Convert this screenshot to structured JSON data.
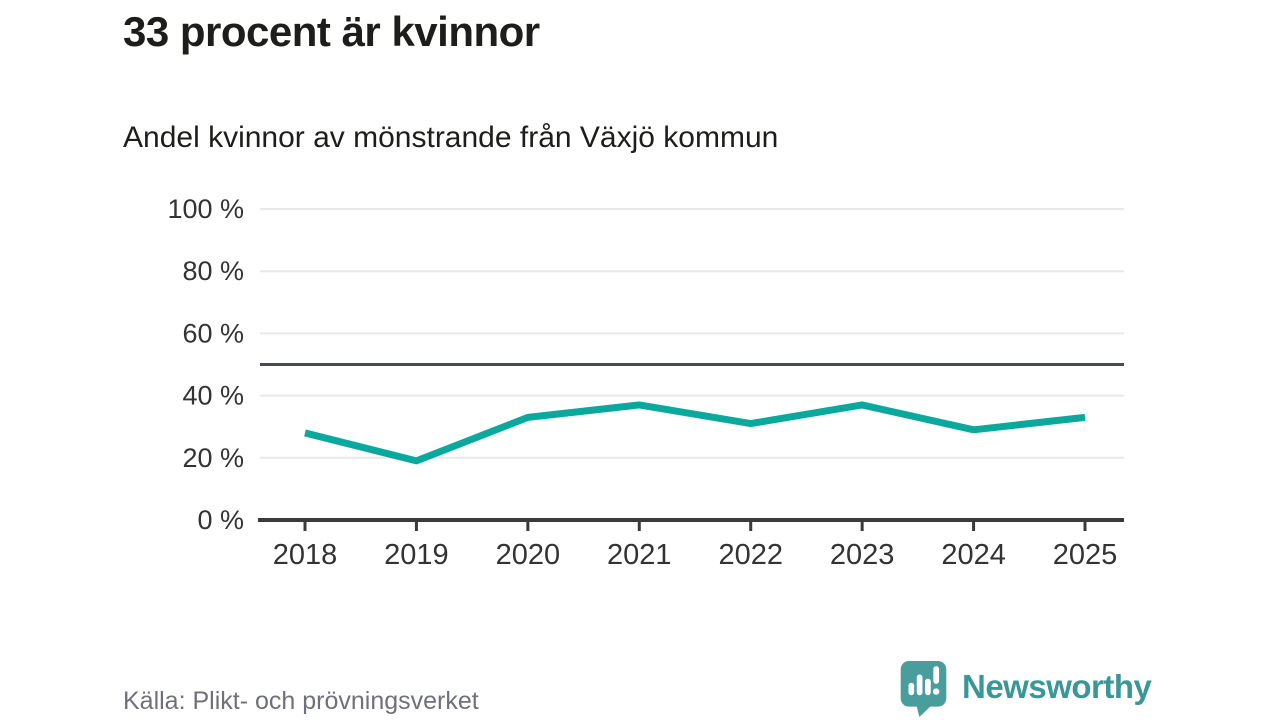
{
  "header": {
    "title": "33 procent är kvinnor",
    "subtitle": "Andel kvinnor av mönstrande från Växjö kommun"
  },
  "chart_data": {
    "type": "line",
    "x": [
      "2018",
      "2019",
      "2020",
      "2021",
      "2022",
      "2023",
      "2024",
      "2025"
    ],
    "series": [
      {
        "name": "Andel kvinnor av mönstrande",
        "values": [
          28,
          19,
          33,
          37,
          31,
          37,
          29,
          33
        ]
      }
    ],
    "title": "33 procent är kvinnor",
    "subtitle": "Andel kvinnor av mönstrande från Växjö kommun",
    "xlabel": "",
    "ylabel": "",
    "ylim": [
      0,
      100
    ],
    "yticks": [
      0,
      20,
      40,
      60,
      80,
      100
    ],
    "ytick_suffix": " %",
    "reference_line_value": 50,
    "grid": true,
    "legend": "none",
    "colors": {
      "line": "#0ba89e",
      "grid": "#e8e8e8",
      "reference_line": "#4a4a52",
      "axis": "#3a3a3a",
      "tick_label": "#333333"
    }
  },
  "footer": {
    "source_label": "Källa: Plikt- och prövningsverket",
    "brand_name": "Newsworthy"
  },
  "brand_colors": {
    "icon_fill": "#4a9d9d",
    "wordmark": "#3a9798"
  }
}
